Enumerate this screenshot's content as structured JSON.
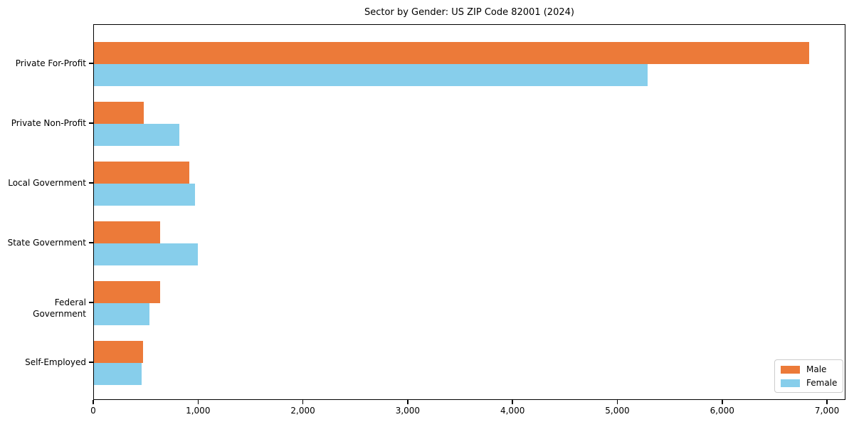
{
  "chart_data": {
    "type": "bar",
    "orientation": "horizontal",
    "title": "Sector by Gender: US ZIP Code 82001 (2024)",
    "categories": [
      "Private For-Profit",
      "Private Non-Profit",
      "Local Government",
      "State Government",
      "Federal Government",
      "Self-Employed"
    ],
    "series": [
      {
        "name": "Male",
        "color": "#ec7a39",
        "values": [
          6820,
          475,
          910,
          630,
          630,
          470
        ]
      },
      {
        "name": "Female",
        "color": "#87ceeb",
        "values": [
          5280,
          815,
          965,
          990,
          530,
          455
        ]
      }
    ],
    "xlabel": "",
    "ylabel": "",
    "xlim": [
      0,
      7176
    ],
    "xticks": [
      0,
      1000,
      2000,
      3000,
      4000,
      5000,
      6000,
      7000
    ],
    "xtick_labels": [
      "0",
      "1,000",
      "2,000",
      "3,000",
      "4,000",
      "5,000",
      "6,000",
      "7,000"
    ],
    "grid": false,
    "legend": {
      "position": "lower right"
    }
  }
}
